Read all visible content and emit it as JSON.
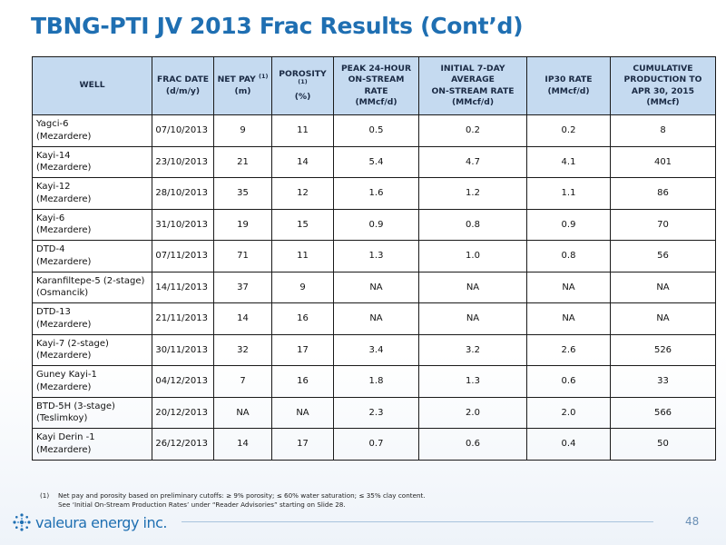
{
  "slide": {
    "title": "TBNG-PTI JV 2013 Frac Results (Cont’d)",
    "page_number": "48"
  },
  "table": {
    "headers": [
      {
        "lines": [
          "WELL"
        ]
      },
      {
        "lines": [
          "FRAC DATE",
          "(d/m/y)"
        ]
      },
      {
        "lines": [
          "NET PAY",
          "(m)"
        ],
        "sup": "(1)"
      },
      {
        "lines": [
          "POROSITY",
          "(%)"
        ],
        "sup": "(1)"
      },
      {
        "lines": [
          "PEAK 24-HOUR",
          "ON-STREAM RATE",
          "(MMcf/d)"
        ]
      },
      {
        "lines": [
          "INITIAL 7-DAY",
          "AVERAGE",
          "ON-STREAM RATE",
          "(MMcf/d)"
        ]
      },
      {
        "lines": [
          "IP30 RATE",
          "(MMcf/d)"
        ]
      },
      {
        "lines": [
          "CUMULATIVE",
          "PRODUCTION TO",
          "APR 30, 2015",
          "(MMcf)"
        ]
      }
    ],
    "rows": [
      {
        "well": "Yagci-6",
        "formation": "(Mezardere)",
        "frac_date": "07/10/2013",
        "net_pay": "9",
        "porosity": "11",
        "peak_24h": "0.5",
        "initial_7day": "0.2",
        "ip30": "0.2",
        "cumulative": "8"
      },
      {
        "well": "Kayi-14",
        "formation": "(Mezardere)",
        "frac_date": "23/10/2013",
        "net_pay": "21",
        "porosity": "14",
        "peak_24h": "5.4",
        "initial_7day": "4.7",
        "ip30": "4.1",
        "cumulative": "401"
      },
      {
        "well": "Kayi-12",
        "formation": "(Mezardere)",
        "frac_date": "28/10/2013",
        "net_pay": "35",
        "porosity": "12",
        "peak_24h": "1.6",
        "initial_7day": "1.2",
        "ip30": "1.1",
        "cumulative": "86"
      },
      {
        "well": "Kayi-6",
        "formation": "(Mezardere)",
        "frac_date": "31/10/2013",
        "net_pay": "19",
        "porosity": "15",
        "peak_24h": "0.9",
        "initial_7day": "0.8",
        "ip30": "0.9",
        "cumulative": "70"
      },
      {
        "well": "DTD-4",
        "formation": "(Mezardere)",
        "frac_date": "07/11/2013",
        "net_pay": "71",
        "porosity": "11",
        "peak_24h": "1.3",
        "initial_7day": "1.0",
        "ip30": "0.8",
        "cumulative": "56"
      },
      {
        "well": "Karanfiltepe-5 (2-stage)",
        "formation": "(Osmancik)",
        "frac_date": "14/11/2013",
        "net_pay": "37",
        "porosity": "9",
        "peak_24h": "NA",
        "initial_7day": "NA",
        "ip30": "NA",
        "cumulative": "NA"
      },
      {
        "well": "DTD-13",
        "formation": "(Mezardere)",
        "frac_date": "21/11/2013",
        "net_pay": "14",
        "porosity": "16",
        "peak_24h": "NA",
        "initial_7day": "NA",
        "ip30": "NA",
        "cumulative": "NA"
      },
      {
        "well": "Kayi-7 (2-stage)",
        "formation": "(Mezardere)",
        "frac_date": "30/11/2013",
        "net_pay": "32",
        "porosity": "17",
        "peak_24h": "3.4",
        "initial_7day": "3.2",
        "ip30": "2.6",
        "cumulative": "526"
      },
      {
        "well": "Guney Kayi-1",
        "formation": "(Mezardere)",
        "frac_date": "04/12/2013",
        "net_pay": "7",
        "porosity": "16",
        "peak_24h": "1.8",
        "initial_7day": "1.3",
        "ip30": "0.6",
        "cumulative": "33"
      },
      {
        "well": "BTD-5H (3-stage)",
        "formation": "(Teslimkoy)",
        "frac_date": "20/12/2013",
        "net_pay": "NA",
        "porosity": "NA",
        "peak_24h": "2.3",
        "initial_7day": "2.0",
        "ip30": "2.0",
        "cumulative": "566"
      },
      {
        "well": "Kayi Derin -1",
        "formation": "(Mezardere)",
        "frac_date": "26/12/2013",
        "net_pay": "14",
        "porosity": "17",
        "peak_24h": "0.7",
        "initial_7day": "0.6",
        "ip30": "0.4",
        "cumulative": "50"
      }
    ]
  },
  "footnote": {
    "number": "(1)",
    "line1": "Net pay and porosity based on preliminary cutoffs: ≥ 9% porosity; ≤ 60% water saturation; ≤ 35% clay content.",
    "line2": "See ‘Initial On-Stream Production Rates’ under “Reader Advisories” starting on Slide 28."
  },
  "logo": {
    "text": "valeura energy inc.",
    "icon": "valeura-star-icon"
  },
  "colors": {
    "title": "#1f6fb2",
    "header_bg": "#c5daf0",
    "footer_line": "#a9c3dd"
  }
}
